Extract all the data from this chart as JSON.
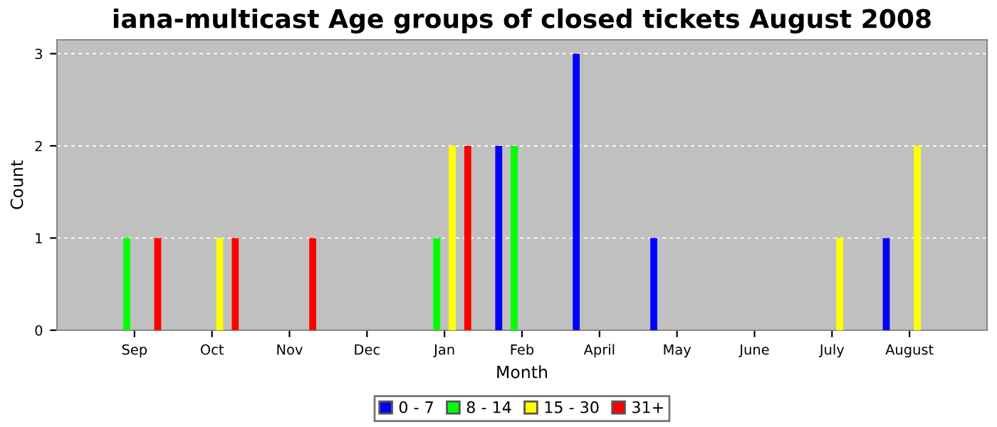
{
  "chart_data": {
    "type": "bar",
    "title": "iana-multicast Age groups of closed tickets August 2008",
    "xlabel": "Month",
    "ylabel": "Count",
    "categories": [
      "Sep",
      "Oct",
      "Nov",
      "Dec",
      "Jan",
      "Feb",
      "April",
      "May",
      "June",
      "July",
      "August"
    ],
    "series": [
      {
        "name": "0 - 7",
        "color": "#0000ff",
        "values": [
          0,
          0,
          0,
          0,
          0,
          2,
          3,
          1,
          0,
          0,
          1
        ]
      },
      {
        "name": "8 - 14",
        "color": "#00ff00",
        "values": [
          1,
          0,
          0,
          0,
          1,
          2,
          0,
          0,
          0,
          0,
          0
        ]
      },
      {
        "name": "15 - 30",
        "color": "#ffff00",
        "values": [
          0,
          1,
          0,
          0,
          2,
          0,
          0,
          0,
          0,
          1,
          2
        ]
      },
      {
        "name": "31+",
        "color": "#ff0000",
        "values": [
          1,
          1,
          1,
          0,
          2,
          0,
          0,
          0,
          0,
          0,
          0
        ]
      }
    ],
    "ylim": [
      0,
      3.15
    ],
    "yticks": [
      0,
      1,
      2,
      3
    ],
    "grid": "y",
    "legend": "bottom"
  }
}
